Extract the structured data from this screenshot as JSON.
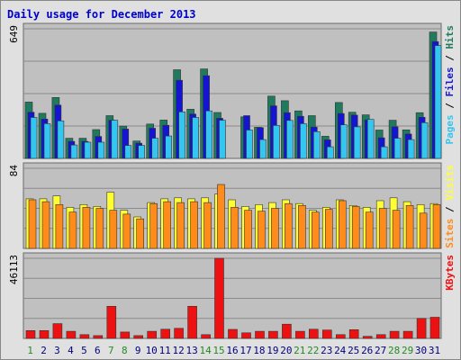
{
  "colors": {
    "background": "#e0e0e0",
    "frame": "#6a6a6a",
    "panel": "#c0c0c0",
    "gridline": "#8a8a8a",
    "title": "#0000cc",
    "hits_fill": "#1f7a5e",
    "files_fill": "#1414d2",
    "pages_fill": "#33c6f0",
    "visits_fill": "#ffff33",
    "sites_fill": "#ff8c1a",
    "kbytes_fill": "#ee1111",
    "bar_stroke": "#333333",
    "weekday_label": "#000080",
    "weekend_label": "#228b22"
  },
  "chart_data": {
    "type": "bar",
    "title": "Daily usage for December 2013",
    "categories": [
      "1",
      "2",
      "3",
      "4",
      "5",
      "6",
      "7",
      "8",
      "9",
      "10",
      "11",
      "12",
      "13",
      "14",
      "15",
      "16",
      "17",
      "18",
      "19",
      "20",
      "21",
      "22",
      "23",
      "24",
      "25",
      "26",
      "27",
      "28",
      "29",
      "30",
      "31"
    ],
    "weekend_days": [
      "1",
      "7",
      "8",
      "14",
      "15",
      "21",
      "22",
      "28",
      "29"
    ],
    "panels": [
      {
        "name": "top",
        "axis_max_label": "649",
        "ylim": [
          0,
          649
        ],
        "right_label": [
          {
            "text": "Pages",
            "color": "#33c6f0"
          },
          {
            "text": " / ",
            "color": "#000000"
          },
          {
            "text": "Files",
            "color": "#1414d2"
          },
          {
            "text": " / ",
            "color": "#000000"
          },
          {
            "text": "Hits",
            "color": "#1f7a5e"
          }
        ],
        "series": [
          {
            "name": "Hits",
            "values": [
              282,
              226,
              305,
              101,
              101,
              144,
              214,
              162,
              87,
              172,
              192,
              444,
              246,
              448,
              230,
              0,
              208,
              156,
              312,
              289,
              238,
              214,
              111,
              280,
              231,
              218,
              142,
              191,
              143,
              229,
              633
            ]
          },
          {
            "name": "Files",
            "values": [
              231,
              197,
              267,
              85,
              85,
              110,
              191,
              147,
              76,
              151,
              166,
              391,
              222,
              414,
              201,
              0,
              214,
              154,
              263,
              229,
              211,
              157,
              93,
              225,
              217,
              193,
              103,
              158,
              122,
              206,
              585
            ]
          },
          {
            "name": "Pages",
            "values": [
              205,
              174,
              188,
              67,
              81,
              81,
              191,
              65,
              65,
              101,
              112,
              233,
              205,
              238,
              191,
              0,
              142,
              94,
              165,
              190,
              174,
              134,
              58,
              168,
              158,
              195,
              58,
              101,
              94,
              179,
              565
            ]
          }
        ]
      },
      {
        "name": "middle",
        "axis_max_label": "84",
        "ylim": [
          0,
          84
        ],
        "right_label": [
          {
            "text": "Sites",
            "color": "#ff8c1a"
          },
          {
            "text": " / ",
            "color": "#000000"
          },
          {
            "text": "Visits",
            "color": "#ffff33"
          }
        ],
        "series": [
          {
            "name": "Visits",
            "values": [
              52,
              52,
              55,
              43,
              46,
              44,
              59,
              40,
              33,
              48,
              52,
              53,
              52,
              53,
              57,
              51,
              44,
              46,
              48,
              51,
              47,
              40,
              43,
              51,
              45,
              43,
              50,
              53,
              49,
              46,
              47
            ]
          },
          {
            "name": "Sites",
            "values": [
              51,
              49,
              46,
              38,
              43,
              42,
              40,
              36,
              31,
              47,
              49,
              48,
              49,
              48,
              67,
              43,
              40,
              39,
              42,
              47,
              45,
              38,
              41,
              50,
              44,
              38,
              42,
              40,
              45,
              37,
              46
            ]
          }
        ]
      },
      {
        "name": "bottom",
        "axis_max_label": "46113",
        "ylim": [
          0,
          46113
        ],
        "right_label": [
          {
            "text": "KBytes",
            "color": "#ee1111"
          }
        ],
        "series": [
          {
            "name": "KBytes",
            "values": [
              4500,
              4500,
              8500,
              4100,
              2200,
              1600,
              18500,
              3700,
              1600,
              4100,
              5300,
              5800,
              18500,
              2200,
              46113,
              5200,
              3200,
              4100,
              4100,
              8200,
              4100,
              5300,
              4800,
              2200,
              5000,
              1200,
              2200,
              4100,
              4100,
              11500,
              12200
            ]
          }
        ]
      }
    ]
  }
}
